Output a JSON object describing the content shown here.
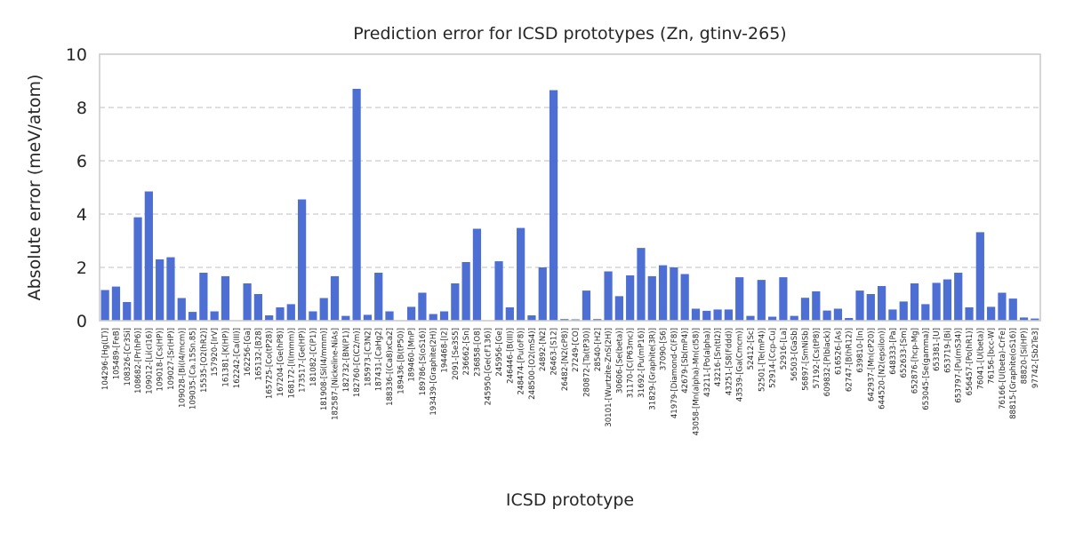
{
  "chart_data": {
    "type": "bar",
    "title": "Prediction error for ICSD prototypes (Zn, gtinv-265)",
    "xlabel": "ICSD prototype",
    "ylabel": "Absolute error (meV/atom)",
    "ylim": [
      0,
      10
    ],
    "yticks": [
      0,
      2,
      4,
      6,
      8,
      10
    ],
    "grid": "horizontal dashed",
    "bar_color": "#4d6fd4",
    "categories": [
      "104296-[Hg(LT)]",
      "105489-[FeB]",
      "108326-[Cr3Si]",
      "108682-[Pr(hP6)]",
      "109012-[Li(cI16)]",
      "109018-[Cs(HP)]",
      "109027-[Sr(HP)]",
      "109028-[Bi(I4/mcm)]",
      "109035-[Ca.15Sn.85]",
      "15535-[O2(hR2)]",
      "157920-[IrV]",
      "161381-[K(HP)]",
      "162242-[Ca(III)]",
      "162256-[Ga]",
      "165132-[B28]",
      "165725-[Co(tP28)]",
      "167204-[Ge(hP8)]",
      "168172-[I(Immm)]",
      "173517-[Ge(HP)]",
      "181082-[C(P1)]",
      "181908-[Si(I4/mmm)]",
      "182587-[Nickeline-NiAs]",
      "182732-[BN(P1)]",
      "182760-[C(C2/m)]",
      "185973-[C3N2]",
      "187431-[CaHg2]",
      "188336-[(Ca8)xCa2]",
      "189436-[B(tP50)]",
      "189460-[MnP]",
      "189786-[S(oS16)]",
      "193439-[Graphite(2H)]",
      "194468-[I2]",
      "2091-[Se3S5]",
      "236662-[Sn]",
      "236858-[O8]",
      "245950-[Ge(cF136)]",
      "245956-[Ge]",
      "246446-[B(III)]",
      "248474-[Pu(oF8)]",
      "248500-[O2(mS4)]",
      "24892-[N2]",
      "26463-[S12]",
      "26482-[N2(cP8)]",
      "27249-[CO]",
      "280872-[Ta(tP30)]",
      "28540-[H2]",
      "30101-[Wurtzite-ZnS(2H)]",
      "30606-[Se(beta)]",
      "31170-[C(P63mc)]",
      "31692-[Pu(mP16)]",
      "31829-[Graphite(3R)]",
      "37090-[S6]",
      "41979-[Diamond-C(F8)]",
      "42679-[Sb(mP4)]",
      "43058-[Mn(alpha)-Mn(cI58)]",
      "43211-[Po(alpha)]",
      "43216-[Sn(tI2)]",
      "43251-[S8(Fddd)]",
      "43539-[Ga(Cmcm)]",
      "52412-[Sc]",
      "52501-[Te(mP4)]",
      "52914-[Ccp-Cu]",
      "52916-[La]",
      "56503-[GaSb]",
      "56897-[SmNiSb]",
      "57192-[Cs(tP8)]",
      "609832-[P(black)]",
      "616526-[As]",
      "62747-[B(hR12)]",
      "639810-[In]",
      "642937-[Mn(cP20)]",
      "644520-[N2(epsilon)]",
      "648333-[Pa]",
      "652633-[Sm]",
      "652876-[hcp-Mg]",
      "653045-[Se(gamma)]",
      "653381-[U]",
      "653719-[Bi]",
      "653797-[Pu(mS34)]",
      "656457-[Po(hR1)]",
      "76041-[U(beta)]",
      "76156-[bcc-W]",
      "76166-[U(beta)-CrFe]",
      "88815-[Graphite(oS16)]",
      "88820-[Si(HP)]",
      "97742-[Sb2Te3]"
    ],
    "values": [
      1.15,
      1.28,
      0.7,
      3.88,
      4.85,
      2.3,
      2.38,
      0.85,
      0.33,
      1.8,
      0.35,
      1.67,
      0.0,
      1.4,
      1.0,
      0.2,
      0.5,
      0.62,
      4.55,
      0.35,
      0.85,
      1.67,
      0.18,
      8.7,
      0.22,
      1.8,
      0.35,
      0.0,
      0.52,
      1.05,
      0.25,
      0.35,
      1.4,
      2.2,
      3.45,
      0.0,
      2.23,
      0.5,
      3.48,
      0.2,
      2.0,
      8.65,
      0.06,
      0.05,
      1.13,
      0.06,
      1.85,
      0.92,
      1.7,
      2.73,
      1.67,
      2.08,
      2.0,
      1.75,
      0.45,
      0.37,
      0.42,
      0.42,
      1.63,
      0.18,
      1.53,
      0.15,
      1.63,
      0.18,
      0.86,
      1.1,
      0.38,
      0.45,
      0.1,
      1.13,
      1.0,
      1.3,
      0.42,
      0.72,
      1.4,
      0.62,
      1.42,
      1.55,
      1.8,
      0.5,
      3.32,
      0.52,
      1.05,
      0.83,
      0.12,
      0.08
    ]
  }
}
